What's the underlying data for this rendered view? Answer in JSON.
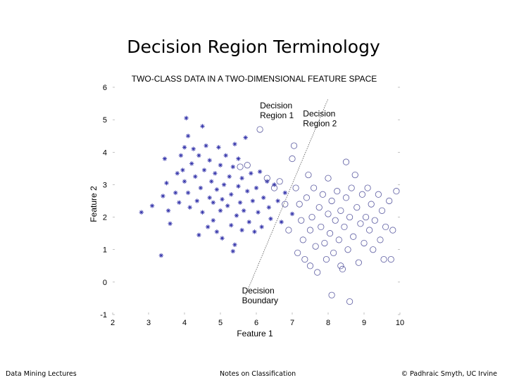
{
  "slide": {
    "title": "Decision Region Terminology",
    "footer_left": "Data Mining Lectures",
    "footer_center": "Notes on Classification",
    "footer_right": "© Padhraic Smyth, UC Irvine"
  },
  "chart_data": {
    "type": "scatter",
    "title": "TWO-CLASS DATA IN A TWO-DIMENSIONAL FEATURE SPACE",
    "xlabel": "Feature 1",
    "ylabel": "Feature 2",
    "xlim": [
      2,
      10
    ],
    "ylim": [
      -1,
      6
    ],
    "xticks": [
      "2",
      "3",
      "4",
      "5",
      "6",
      "7",
      "8",
      "9",
      "10"
    ],
    "yticks": [
      "-1",
      "0",
      "1",
      "2",
      "3",
      "4",
      "5",
      "6"
    ],
    "grid": false,
    "colors": {
      "class1": "#3333aa",
      "class2": "#5a5aa0",
      "boundary": "#555555"
    },
    "annotations": [
      {
        "id": "region1",
        "lines": [
          "Decision",
          "Region 1"
        ],
        "x": 6.1,
        "y": 5.35
      },
      {
        "id": "region2",
        "lines": [
          "Decision",
          "Region 2"
        ],
        "x": 7.3,
        "y": 5.1
      },
      {
        "id": "boundary",
        "lines": [
          "Decision",
          "Boundary"
        ],
        "x": 5.6,
        "y": -0.35
      }
    ],
    "boundary": {
      "x1": 5.7,
      "y1": -0.4,
      "x2": 8.0,
      "y2": 5.65
    },
    "series": [
      {
        "marker": "star",
        "points": [
          [
            2.8,
            2.15
          ],
          [
            3.1,
            2.35
          ],
          [
            3.35,
            0.82
          ],
          [
            3.4,
            2.65
          ],
          [
            3.45,
            3.8
          ],
          [
            3.5,
            3.05
          ],
          [
            3.55,
            2.2
          ],
          [
            3.6,
            1.8
          ],
          [
            3.75,
            2.75
          ],
          [
            3.8,
            3.35
          ],
          [
            3.85,
            2.45
          ],
          [
            3.9,
            3.9
          ],
          [
            3.95,
            3.45
          ],
          [
            4.0,
            3.1
          ],
          [
            4.0,
            4.15
          ],
          [
            4.05,
            5.05
          ],
          [
            4.1,
            4.5
          ],
          [
            4.1,
            2.75
          ],
          [
            4.15,
            2.3
          ],
          [
            4.2,
            3.65
          ],
          [
            4.25,
            4.1
          ],
          [
            4.3,
            3.25
          ],
          [
            4.35,
            2.5
          ],
          [
            4.4,
            3.9
          ],
          [
            4.45,
            2.9
          ],
          [
            4.5,
            4.8
          ],
          [
            4.5,
            2.15
          ],
          [
            4.55,
            3.45
          ],
          [
            4.6,
            4.2
          ],
          [
            4.65,
            1.7
          ],
          [
            4.7,
            2.6
          ],
          [
            4.7,
            3.75
          ],
          [
            4.75,
            3.1
          ],
          [
            4.8,
            1.9
          ],
          [
            4.8,
            2.45
          ],
          [
            4.85,
            3.35
          ],
          [
            4.9,
            1.55
          ],
          [
            4.9,
            2.85
          ],
          [
            4.95,
            4.15
          ],
          [
            5.0,
            3.6
          ],
          [
            5.0,
            2.2
          ],
          [
            5.05,
            1.35
          ],
          [
            5.05,
            2.55
          ],
          [
            5.1,
            3.0
          ],
          [
            5.15,
            3.9
          ],
          [
            5.2,
            2.35
          ],
          [
            5.25,
            3.25
          ],
          [
            5.3,
            1.75
          ],
          [
            5.3,
            2.7
          ],
          [
            5.35,
            3.55
          ],
          [
            5.4,
            4.25
          ],
          [
            5.4,
            1.15
          ],
          [
            5.45,
            2.05
          ],
          [
            5.5,
            2.95
          ],
          [
            5.5,
            3.8
          ],
          [
            5.55,
            2.45
          ],
          [
            5.6,
            1.6
          ],
          [
            5.6,
            3.2
          ],
          [
            5.65,
            2.2
          ],
          [
            5.7,
            4.45
          ],
          [
            5.75,
            2.8
          ],
          [
            5.8,
            1.85
          ],
          [
            5.85,
            3.35
          ],
          [
            5.9,
            2.5
          ],
          [
            5.95,
            1.55
          ],
          [
            6.0,
            2.9
          ],
          [
            6.05,
            2.15
          ],
          [
            6.1,
            3.4
          ],
          [
            6.15,
            1.7
          ],
          [
            6.2,
            2.6
          ],
          [
            6.3,
            3.1
          ],
          [
            6.35,
            2.3
          ],
          [
            6.4,
            1.95
          ],
          [
            6.5,
            3.0
          ],
          [
            6.6,
            2.5
          ],
          [
            6.7,
            1.85
          ],
          [
            6.8,
            2.75
          ],
          [
            7.0,
            2.1
          ],
          [
            5.35,
            0.95
          ],
          [
            4.4,
            1.45
          ]
        ]
      },
      {
        "marker": "circle",
        "points": [
          [
            5.55,
            3.55
          ],
          [
            5.75,
            3.6
          ],
          [
            6.1,
            4.7
          ],
          [
            6.3,
            3.2
          ],
          [
            6.5,
            2.9
          ],
          [
            6.65,
            3.1
          ],
          [
            6.8,
            2.4
          ],
          [
            6.9,
            1.6
          ],
          [
            7.0,
            3.8
          ],
          [
            7.05,
            4.2
          ],
          [
            7.1,
            2.9
          ],
          [
            7.2,
            2.4
          ],
          [
            7.25,
            1.9
          ],
          [
            7.3,
            1.3
          ],
          [
            7.35,
            0.7
          ],
          [
            7.4,
            2.6
          ],
          [
            7.45,
            3.3
          ],
          [
            7.5,
            1.6
          ],
          [
            7.5,
            0.5
          ],
          [
            7.55,
            2.0
          ],
          [
            7.6,
            2.9
          ],
          [
            7.65,
            1.1
          ],
          [
            7.7,
            0.3
          ],
          [
            7.75,
            2.3
          ],
          [
            7.8,
            1.7
          ],
          [
            7.85,
            2.7
          ],
          [
            7.9,
            1.2
          ],
          [
            7.95,
            0.7
          ],
          [
            8.0,
            2.1
          ],
          [
            8.0,
            3.2
          ],
          [
            8.05,
            1.5
          ],
          [
            8.1,
            2.5
          ],
          [
            8.15,
            0.9
          ],
          [
            8.2,
            1.9
          ],
          [
            8.25,
            2.8
          ],
          [
            8.3,
            1.3
          ],
          [
            8.35,
            2.2
          ],
          [
            8.4,
            0.4
          ],
          [
            8.45,
            1.7
          ],
          [
            8.5,
            2.6
          ],
          [
            8.5,
            3.7
          ],
          [
            8.55,
            1.0
          ],
          [
            8.6,
            2.0
          ],
          [
            8.65,
            2.9
          ],
          [
            8.7,
            1.4
          ],
          [
            8.75,
            3.3
          ],
          [
            8.8,
            2.3
          ],
          [
            8.85,
            0.6
          ],
          [
            8.9,
            1.8
          ],
          [
            8.95,
            2.7
          ],
          [
            9.0,
            1.2
          ],
          [
            9.05,
            2.0
          ],
          [
            9.1,
            2.9
          ],
          [
            9.15,
            1.6
          ],
          [
            9.2,
            2.4
          ],
          [
            9.3,
            1.9
          ],
          [
            9.4,
            2.7
          ],
          [
            9.45,
            1.3
          ],
          [
            9.5,
            2.2
          ],
          [
            9.55,
            0.7
          ],
          [
            9.6,
            1.7
          ],
          [
            9.7,
            2.5
          ],
          [
            9.75,
            0.7
          ],
          [
            9.8,
            1.6
          ],
          [
            9.9,
            2.8
          ],
          [
            8.1,
            -0.4
          ],
          [
            8.6,
            -0.6
          ],
          [
            7.15,
            0.9
          ],
          [
            8.35,
            0.5
          ],
          [
            9.25,
            1.0
          ]
        ]
      }
    ]
  }
}
